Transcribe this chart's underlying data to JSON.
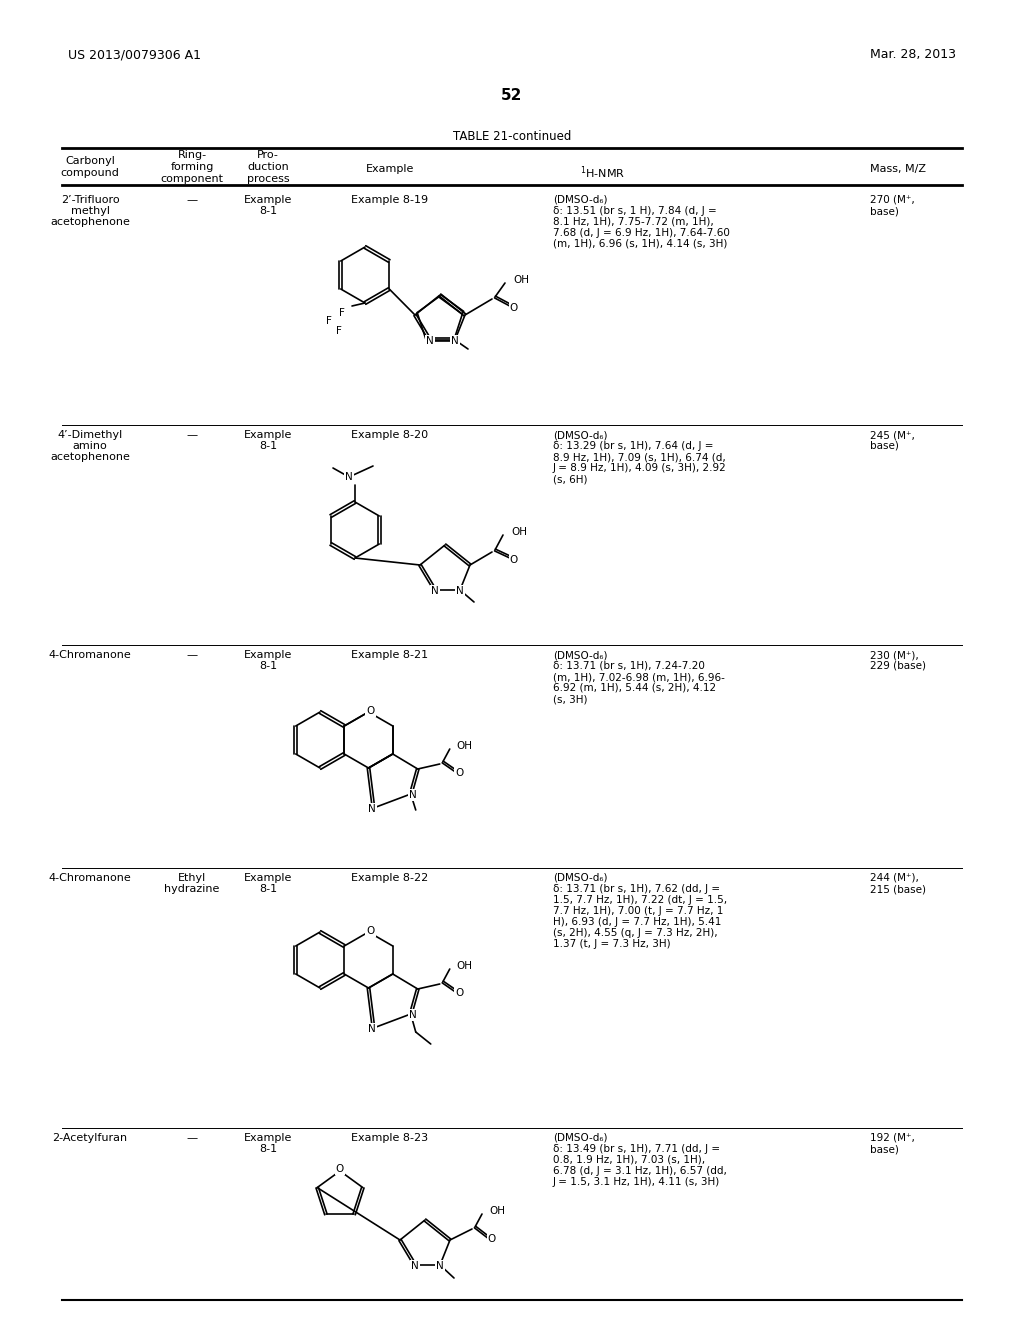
{
  "page_header_left": "US 2013/0079306 A1",
  "page_header_right": "Mar. 28, 2013",
  "page_number": "52",
  "table_title": "TABLE 21-continued",
  "col_header_carbonyl": "Carbonyl\ncompound",
  "col_header_ring": "Ring-\nforming\ncomponent",
  "col_header_prod": "Pro-\nduction\nprocess",
  "col_header_example": "Example",
  "col_header_nmr": "¹H-NMR",
  "col_header_mass": "Mass, M/Z",
  "rows": [
    {
      "carbonyl": "2’-Trifluoro\nmethyl\nacetophenone",
      "ring_forming": "—",
      "production": "Example\n8-1",
      "example": "Example 8-19",
      "nmr_line1": "(DMSO-d₆)",
      "nmr_line2": "δ: 13.51 (br s, 1 H), 7.84 (d, J =",
      "nmr_line3": "8.1 Hz, 1H), 7.75-7.72 (m, 1H),",
      "nmr_line4": "7.68 (d, J = 6.9 Hz, 1H), 7.64-7.60",
      "nmr_line5": "(m, 1H), 6.96 (s, 1H), 4.14 (s, 3H)",
      "mass_line1": "270 (M⁺,",
      "mass_line2": "base)"
    },
    {
      "carbonyl": "4’-Dimethyl\namino\nacetophenone",
      "ring_forming": "—",
      "production": "Example\n8-1",
      "example": "Example 8-20",
      "nmr_line1": "(DMSO-d₆)",
      "nmr_line2": "δ: 13.29 (br s, 1H), 7.64 (d, J =",
      "nmr_line3": "8.9 Hz, 1H), 7.09 (s, 1H), 6.74 (d,",
      "nmr_line4": "J = 8.9 Hz, 1H), 4.09 (s, 3H), 2.92",
      "nmr_line5": "(s, 6H)",
      "mass_line1": "245 (M⁺,",
      "mass_line2": "base)"
    },
    {
      "carbonyl": "4-Chromanone",
      "ring_forming": "—",
      "production": "Example\n8-1",
      "example": "Example 8-21",
      "nmr_line1": "(DMSO-d₆)",
      "nmr_line2": "δ: 13.71 (br s, 1H), 7.24-7.20",
      "nmr_line3": "(m, 1H), 7.02-6.98 (m, 1H), 6.96-",
      "nmr_line4": "6.92 (m, 1H), 5.44 (s, 2H), 4.12",
      "nmr_line5": "(s, 3H)",
      "mass_line1": "230 (M⁺),",
      "mass_line2": "229 (base)"
    },
    {
      "carbonyl": "4-Chromanone",
      "ring_forming": "Ethyl\nhydrazine",
      "production": "Example\n8-1",
      "example": "Example 8-22",
      "nmr_line1": "(DMSO-d₆)",
      "nmr_line2": "δ: 13.71 (br s, 1H), 7.62 (dd, J =",
      "nmr_line3": "1.5, 7.7 Hz, 1H), 7.22 (dt, J = 1.5,",
      "nmr_line4": "7.7 Hz, 1H), 7.00 (t, J = 7.7 Hz, 1",
      "nmr_line5": "H), 6.93 (d, J = 7.7 Hz, 1H), 5.41",
      "nmr_line6": "(s, 2H), 4.55 (q, J = 7.3 Hz, 2H),",
      "nmr_line7": "1.37 (t, J = 7.3 Hz, 3H)",
      "mass_line1": "244 (M⁺),",
      "mass_line2": "215 (base)"
    },
    {
      "carbonyl": "2-Acetylfuran",
      "ring_forming": "—",
      "production": "Example\n8-1",
      "example": "Example 8-23",
      "nmr_line1": "(DMSO-d₆)",
      "nmr_line2": "δ: 13.49 (br s, 1H), 7.71 (dd, J =",
      "nmr_line3": "0.8, 1.9 Hz, 1H), 7.03 (s, 1H),",
      "nmr_line4": "6.78 (d, J = 3.1 Hz, 1H), 6.57 (dd,",
      "nmr_line5": "J = 1.5, 3.1 Hz, 1H), 4.11 (s, 3H)",
      "mass_line1": "192 (M⁺,",
      "mass_line2": "base)"
    }
  ]
}
